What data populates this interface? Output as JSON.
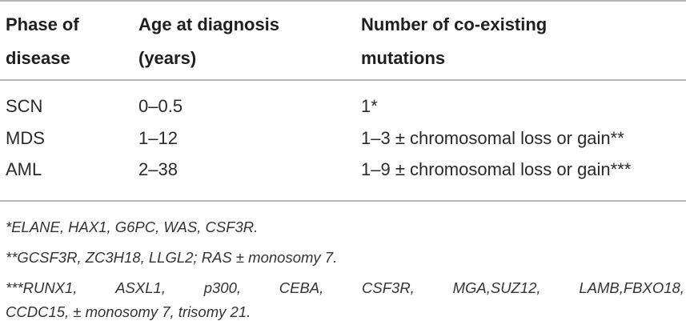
{
  "header": {
    "col1_line1": "Phase of",
    "col1_line2": "disease",
    "col2_line1": "Age at diagnosis",
    "col2_line2": "(years)",
    "col3_line1": "Number of co-existing",
    "col3_line2": "mutations"
  },
  "rows": [
    {
      "phase": "SCN",
      "age": "0–0.5",
      "mutations": "1*"
    },
    {
      "phase": "MDS",
      "age": "1–12",
      "mutations": "1–3 ± chromosomal loss or gain**"
    },
    {
      "phase": "AML",
      "age": "2–38",
      "mutations": "1–9 ± chromosomal loss or gain***"
    }
  ],
  "footnotes": {
    "note1": "*ELANE, HAX1, G6PC, WAS, CSF3R.",
    "note2": "**GCSF3R, ZC3H18, LLGL2; RAS ± monosomy 7.",
    "note3_words": [
      "***RUNX1,",
      "ASXL1,",
      "p300,",
      "CEBA,",
      "CSF3R,",
      "MGA,SUZ12,",
      "LAMB,FBXO18,"
    ],
    "note3_line2": "CCDC15, ± monosomy 7, trisomy 21."
  }
}
